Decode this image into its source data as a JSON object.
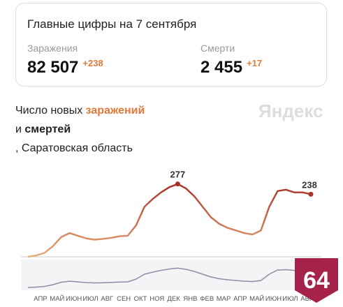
{
  "header": {
    "title": "Главные цифры на 7 сентября",
    "stats": [
      {
        "label": "Заражения",
        "value": "82 507",
        "delta": "+238"
      },
      {
        "label": "Смерти",
        "value": "2 455",
        "delta": "+17"
      }
    ]
  },
  "brand": "Яндекс",
  "badge": "64",
  "chart_data": {
    "type": "line",
    "title_parts": [
      "Число новых",
      "заражений",
      "и",
      "смертей",
      ", Саратовская область"
    ],
    "x": [
      "АПР",
      null,
      "МАЙ",
      null,
      "ИЮН",
      null,
      "ИЮЛ",
      null,
      "АВГ",
      null,
      "СЕН",
      null,
      "ОКТ",
      null,
      "НОЯ",
      null,
      "ДЕК",
      null,
      "ЯНВ",
      null,
      "ФЕВ",
      null,
      "МАР",
      null,
      "АПР",
      null,
      "МАЙ",
      null,
      "ИЮН",
      null,
      "ИЮЛ",
      null,
      "АВГ",
      null,
      null
    ],
    "series": [
      {
        "name": "заражений",
        "colors": [
          "#e8b07a",
          "#a8322a"
        ],
        "values": [
          0,
          5,
          15,
          40,
          75,
          90,
          80,
          70,
          65,
          68,
          72,
          78,
          80,
          120,
          190,
          220,
          245,
          265,
          277,
          260,
          230,
          190,
          150,
          125,
          110,
          100,
          90,
          85,
          100,
          190,
          250,
          255,
          245,
          245,
          238
        ]
      }
    ],
    "labeled_points": [
      18,
      34
    ],
    "ylim": [
      0,
      300
    ]
  }
}
